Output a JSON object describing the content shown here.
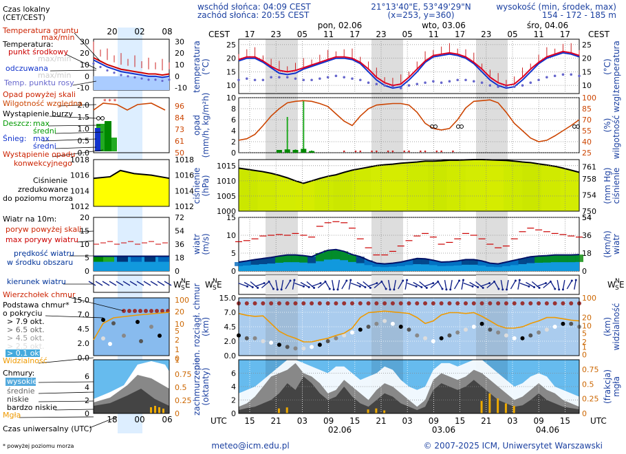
{
  "header": {
    "sunrise": "wschód słońca: 04:09 CEST",
    "sunset": "zachód słońca: 20:55 CEST",
    "coords": "21°13'40\"E, 53°49'29\"N",
    "grid": "(x=253, y=360)",
    "height_title": "wysokość (min, środek, max)",
    "height_values": "154 - 172 - 185 m",
    "days_top": [
      "pon, 02.06",
      "wto, 03.06",
      "śro, 04.06"
    ],
    "days_bottom": [
      "02.06",
      "03.06",
      "04.06"
    ],
    "tz_local": "CEST",
    "tz_utc": "UTC"
  },
  "legend": {
    "czas_lokalny": "Czas lokalny",
    "czas_lokalny2": "(CET/CEST)",
    "local_hours": [
      "20",
      "02",
      "08"
    ],
    "utc_hours": [
      "18",
      "00",
      "06"
    ],
    "temp_gruntu": "Temperatura gruntu",
    "max_min": "max/min",
    "temperatura": "Temperatura:",
    "punkt_srodkowy": "punkt środkowy",
    "odczuwana": "odczuwana",
    "temp_punktu_rosy": "Temp. punktu rosy",
    "opad_powyzej": "Opad powyżej skali",
    "wilgotnosc": "Wilgotność względna",
    "burza": "Wystąpienie burzy",
    "deszcz": "Deszcz:",
    "max": "max",
    "sredni": "średni",
    "snieg": "Śnieg:",
    "wyst_opadu1": "Wystąpienie opadu",
    "wyst_opadu2": "konwekcyjnego",
    "cisnienie1": "Ciśnienie",
    "cisnienie2": "zredukowane",
    "cisnienie3": "do poziomu morza",
    "wiatr_10m": "Wiatr na 10m:",
    "poryw_powyzej": "poryw powyżej skali",
    "max_porywy": "max porywy wiatru",
    "predkosc1": "prędkość wiatru",
    "predkosc2": "w środku obszaru",
    "kierunek": "kierunek wiatru",
    "wierzcholek": "Wierzchołek chmur",
    "podstawa1": "Podstawa chmur*",
    "podstawa2": "o pokryciu",
    "okt": [
      "> 7.9 okt.",
      "> 6.5 okt.",
      "> 4.5 okt.",
      "> 2.5 okt.",
      "> 0.1 okt."
    ],
    "widzialnosc": "Widzialność",
    "chmury": "Chmury:",
    "wysokie": "wysokie",
    "srednie": "średnie",
    "niskie": "niskie",
    "bardzo_niskie": "bardzo niskie",
    "mgla": "Mgła",
    "czas_utc": "Czas uniwersalny (UTC)",
    "footnote": "* powyżej poziomu morza"
  },
  "footer": {
    "email": "meteo@icm.edu.pl",
    "copyright": "© 2007-2025 ICM, Uniwersytet Warszawski"
  },
  "colors": {
    "temp": "#dd0022",
    "feel": "#1133cc",
    "dew": "#6666cc",
    "humidity": "#cc4400",
    "pressure_fill": "#ddee00",
    "wind": "#009900",
    "gust": "#cc0000",
    "cloud_bg": "#aaccee",
    "vis": "#ee9900",
    "night": "#dddddd"
  },
  "chart_data": [
    {
      "type": "line",
      "title": "temperatura",
      "ylabel": "temperatura (°C)",
      "ylim": [
        7,
        27
      ],
      "yticks": [
        10,
        15,
        20,
        25
      ],
      "x_local_ticks": [
        "17",
        "23",
        "05",
        "11",
        "17",
        "23",
        "05",
        "11",
        "17",
        "23",
        "05",
        "11",
        "17"
      ],
      "x_utc_ticks": [
        "15",
        "21",
        "03",
        "09",
        "15",
        "21",
        "03",
        "09",
        "15",
        "21",
        "03",
        "09",
        "15"
      ],
      "series": [
        {
          "name": "temperatura",
          "values": [
            19.5,
            20.5,
            20.5,
            19,
            17,
            15.5,
            15,
            15.5,
            16.5,
            17.5,
            18.5,
            19.5,
            20.5,
            20.5,
            20,
            18.5,
            16,
            13,
            11,
            10,
            10.5,
            13,
            16,
            19,
            21,
            21.5,
            22,
            21.5,
            20.5,
            18.5,
            16,
            13,
            11,
            10,
            10.5,
            13,
            16,
            18.5,
            20.5,
            21.5,
            22.5,
            22,
            21
          ]
        },
        {
          "name": "odczuwana",
          "values": [
            19,
            20,
            20,
            18.5,
            16.5,
            14.5,
            14,
            14.5,
            16,
            17,
            18,
            19,
            20,
            20,
            19.5,
            18,
            15,
            12,
            10,
            9,
            9.5,
            12,
            15,
            18.5,
            20.5,
            21,
            21.5,
            21,
            20,
            18,
            15,
            12,
            10,
            9,
            9.5,
            12,
            15,
            18,
            20,
            21,
            22,
            21.5,
            20.5
          ]
        },
        {
          "name": "punkt rosy",
          "values": [
            12,
            12.5,
            12,
            12,
            13,
            13,
            13,
            12.5,
            12,
            12,
            12.5,
            13,
            13.5,
            13,
            12.5,
            12,
            11,
            10.5,
            10,
            9.5,
            9,
            10,
            10.5,
            11,
            11.5,
            11,
            11.5,
            12,
            12,
            11.5,
            11,
            10,
            9.5,
            9.5,
            9.5,
            10,
            11,
            12,
            13,
            13.5,
            14,
            14,
            13.5
          ]
        }
      ],
      "left_panel": {
        "ylim": [
          -12,
          32
        ],
        "yticks": [
          -10,
          0,
          10,
          20,
          30
        ]
      }
    },
    {
      "type": "bar",
      "title": "opad",
      "ylabel": "opad (mm/h, kg/m²h)",
      "ylim": [
        0,
        10
      ],
      "yticks": [
        0,
        2,
        4,
        6,
        8,
        10
      ],
      "y2label": "wilgotność wzgl. (%)",
      "y2ticks": [
        25,
        40,
        55,
        70,
        85,
        100
      ],
      "series": [
        {
          "name": "wilgotność",
          "values": [
            42,
            44,
            50,
            62,
            75,
            85,
            93,
            95,
            96,
            95,
            92,
            88,
            78,
            68,
            62,
            75,
            85,
            90,
            91,
            92,
            92,
            90,
            80,
            65,
            58,
            56,
            58,
            70,
            86,
            95,
            96,
            97,
            93,
            80,
            65,
            55,
            45,
            40,
            42,
            48,
            55,
            62,
            70
          ]
        },
        {
          "name": "deszcz max",
          "values": [
            0,
            0,
            0,
            0,
            0,
            0.5,
            6.5,
            0.6,
            9.5,
            0.4,
            0,
            0,
            0,
            0,
            0,
            0,
            0,
            0,
            0,
            0,
            0,
            0,
            0,
            0,
            0,
            0,
            0,
            0,
            0,
            0,
            0,
            0,
            0,
            0,
            0,
            0,
            0,
            0,
            0,
            0,
            0,
            0,
            0
          ]
        },
        {
          "name": "deszcz średni",
          "values": [
            0,
            0,
            0,
            0,
            0,
            0.5,
            0.6,
            0.5,
            0.7,
            0.3,
            0,
            0,
            0,
            0,
            0,
            0,
            0,
            0,
            0,
            0,
            0,
            0,
            0,
            0,
            0,
            0,
            0,
            0,
            0,
            0,
            0,
            0,
            0,
            0,
            0,
            0,
            0,
            0,
            0,
            0,
            0,
            0,
            0
          ]
        }
      ],
      "left_panel": {
        "ylim": [
          0,
          2.3
        ],
        "yticks": [
          0,
          0.5,
          1.0,
          1.5,
          2.0
        ],
        "y2ticks": [
          50,
          61,
          73,
          84,
          96
        ]
      }
    },
    {
      "type": "area",
      "title": "ciśnienie",
      "ylabel": "ciśnienie (hPa)",
      "ylim": [
        1000,
        1017
      ],
      "yticks": [
        1000,
        1005,
        1010,
        1015
      ],
      "y2label": "ciśnienie (mm Hg)",
      "y2ticks": [
        750,
        754,
        758,
        761
      ],
      "series": [
        {
          "name": "ciśnienie",
          "values": [
            1014.2,
            1013.8,
            1013.4,
            1013,
            1012.5,
            1011.8,
            1011,
            1010,
            1009.2,
            1010,
            1010.8,
            1011.5,
            1012,
            1012.8,
            1013.5,
            1014,
            1014.5,
            1015,
            1015.3,
            1015.5,
            1015.8,
            1016,
            1016.2,
            1016.5,
            1016.5,
            1016.6,
            1016.8,
            1016.8,
            1016.9,
            1017,
            1017,
            1016.9,
            1016.8,
            1016.7,
            1016.5,
            1016.2,
            1016,
            1015.6,
            1015.2,
            1014.8,
            1014.2,
            1013.5,
            1012.8
          ]
        }
      ],
      "left_panel": {
        "ylim": [
          1012,
          1018
        ],
        "yticks": [
          1012,
          1014,
          1016,
          1018
        ]
      }
    },
    {
      "type": "area",
      "title": "wiatr",
      "ylabel": "wiatr (m/s)",
      "ylim": [
        0,
        15
      ],
      "yticks": [
        0,
        5,
        10,
        15
      ],
      "y2label": "wiatr (km/h)",
      "y2ticks": [
        18,
        36,
        54
      ],
      "series": [
        {
          "name": "prędkość",
          "values": [
            2.5,
            2.8,
            3.2,
            3.5,
            3.8,
            4.2,
            4.5,
            4.5,
            4.3,
            4,
            5,
            5.8,
            6,
            5.5,
            4.6,
            4,
            3,
            2.2,
            2,
            2.2,
            2.5,
            3,
            3.5,
            3.4,
            3,
            2.5,
            2.6,
            2.8,
            3.2,
            3.2,
            2.8,
            2.2,
            2,
            2.5,
            3,
            3.5,
            4,
            4.2,
            4.3,
            4.5,
            4.5,
            4.5,
            4.6
          ]
        },
        {
          "name": "max porywy",
          "values": [
            8.2,
            8.5,
            9,
            9.8,
            10,
            10.2,
            10,
            10.5,
            10,
            9.5,
            12.5,
            13.5,
            13.8,
            13.5,
            12,
            9,
            6.5,
            4.5,
            4.5,
            5.5,
            7,
            8.5,
            9.8,
            10.5,
            9.5,
            7.5,
            8,
            9,
            10.5,
            10,
            9,
            7.5,
            6.5,
            7,
            9,
            11,
            12,
            11.5,
            11,
            10.5,
            10.2,
            9.8,
            9.5
          ]
        }
      ],
      "left_panel": {
        "ylim": [
          0,
          20
        ],
        "yticks": [
          0,
          5,
          10,
          15,
          20
        ],
        "y2ticks": [
          18,
          36,
          54,
          72
        ]
      }
    },
    {
      "type": "line",
      "title": "chmury",
      "ylabel": "pion. rozciągł. chmur (km)",
      "ylim": [
        0,
        15
      ],
      "yticks": [
        "0.0",
        "2.0",
        "4.5",
        "7.0",
        "15.0"
      ],
      "y2label": "widzialność (km)",
      "y2ticks": [
        0,
        1,
        2,
        5,
        10,
        20,
        100
      ],
      "series": [
        {
          "name": "widzialność",
          "values": [
            28,
            24,
            22,
            23,
            12,
            6,
            4,
            3,
            2,
            2,
            2.5,
            3,
            4,
            5,
            8,
            20,
            30,
            32,
            34,
            32,
            30,
            28,
            20,
            12,
            15,
            25,
            30,
            30,
            28,
            30,
            22,
            15,
            10,
            8,
            8,
            9,
            12,
            15,
            20,
            20,
            18,
            16,
            15
          ]
        }
      ]
    },
    {
      "type": "area",
      "title": "zachmurzenie",
      "ylabel": "zachmurzenie (oktanty)",
      "ylim": [
        0,
        8
      ],
      "yticks": [
        0,
        2,
        4,
        6
      ],
      "y2label": "mgła (frakcja)",
      "y2ticks": [
        0,
        0.25,
        0.5,
        0.75
      ],
      "series": [
        {
          "name": "niskie",
          "values": [
            0.5,
            0.8,
            1,
            1.5,
            2,
            3,
            4.5,
            3.5,
            5.5,
            4.5,
            3,
            2,
            2.5,
            4,
            2.5,
            1.5,
            1,
            2,
            3,
            2.5,
            1.5,
            1,
            0.5,
            1,
            3.5,
            4.5,
            4,
            3.5,
            4,
            5,
            4,
            3,
            2,
            1.5,
            1,
            1.2,
            2,
            3,
            2,
            1.5,
            1,
            0.8,
            0.6
          ]
        },
        {
          "name": "średnie",
          "values": [
            1,
            1.5,
            2.5,
            4,
            5.5,
            6,
            6.5,
            7.5,
            6,
            5.5,
            4.5,
            3,
            3.5,
            5,
            4,
            3,
            2,
            3.5,
            4.5,
            4,
            3,
            2,
            1,
            2,
            5,
            6,
            5.5,
            5,
            5.5,
            6.5,
            6,
            5,
            4,
            3,
            2,
            2.5,
            3.5,
            4.5,
            3.5,
            3,
            2,
            1.5,
            1
          ]
        },
        {
          "name": "wysokie",
          "values": [
            3,
            3.5,
            4,
            5,
            6,
            7,
            8,
            8,
            7.5,
            7,
            6.5,
            6,
            7,
            7,
            6,
            5,
            5.5,
            6,
            7,
            6.5,
            5,
            4,
            3.5,
            4,
            6.5,
            7.5,
            7.5,
            7,
            7.5,
            8,
            8,
            7,
            6,
            5,
            4,
            4.5,
            5.5,
            6,
            5.5,
            4,
            3.5,
            3,
            2.5
          ]
        }
      ]
    }
  ]
}
